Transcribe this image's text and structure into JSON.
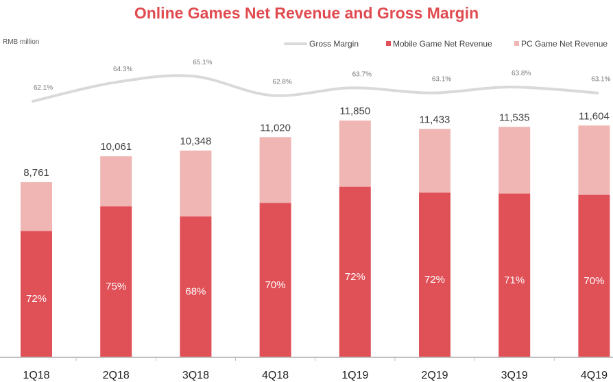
{
  "chart_data": {
    "type": "bar",
    "stacked": true,
    "title": "Online Games Net Revenue and Gross Margin",
    "unit_label": "RMB million",
    "categories": [
      "1Q18",
      "2Q18",
      "3Q18",
      "4Q18",
      "1Q19",
      "2Q19",
      "3Q19",
      "4Q19"
    ],
    "totals": [
      8761,
      10061,
      10348,
      11020,
      11850,
      11433,
      11535,
      11604
    ],
    "total_labels": [
      "8,761",
      "10,061",
      "10,348",
      "11,020",
      "11,850",
      "11,433",
      "11,535",
      "11,604"
    ],
    "mobile_share_pct": [
      72,
      75,
      68,
      70,
      72,
      72,
      71,
      70
    ],
    "mobile_share_labels": [
      "72%",
      "75%",
      "68%",
      "70%",
      "72%",
      "72%",
      "71%",
      "70%"
    ],
    "series": [
      {
        "name": "Mobile Game Net Revenue",
        "type": "bar",
        "color": "#e05057",
        "values": [
          6308,
          7546,
          7037,
          7714,
          8532,
          8232,
          8190,
          8123
        ]
      },
      {
        "name": "PC Game Net Revenue",
        "type": "bar",
        "color": "#efb6b4",
        "values": [
          2453,
          2515,
          3311,
          3306,
          3318,
          3201,
          3345,
          3481
        ]
      },
      {
        "name": "Gross Margin",
        "type": "line",
        "color": "#d9d9d9",
        "values": [
          62.1,
          64.3,
          65.1,
          62.8,
          63.7,
          63.1,
          63.8,
          63.1
        ],
        "labels": [
          "62.1%",
          "64.3%",
          "65.1%",
          "62.8%",
          "63.7%",
          "63.1%",
          "63.8%",
          "63.1%"
        ]
      }
    ],
    "legend": {
      "position": "top-right",
      "order": [
        "Gross Margin",
        "Mobile Game Net Revenue",
        "PC Game Net Revenue"
      ]
    },
    "ylim": [
      0,
      12000
    ],
    "grid": false
  }
}
